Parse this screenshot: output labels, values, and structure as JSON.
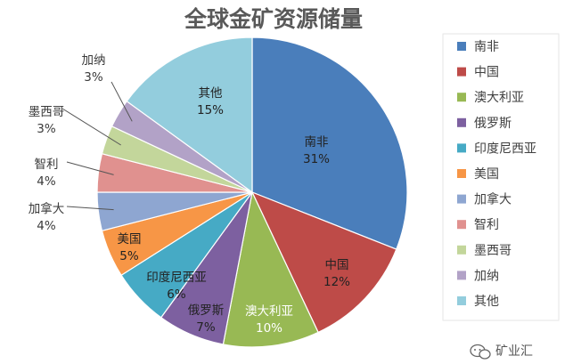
{
  "chart_data": {
    "type": "pie",
    "title": "全球金矿资源储量",
    "unit": "%",
    "slices": [
      {
        "name": "南非",
        "value": 31,
        "label": "31%",
        "color": "#4a7ebb"
      },
      {
        "name": "中国",
        "value": 12,
        "label": "12%",
        "color": "#be4b48"
      },
      {
        "name": "澳大利亚",
        "value": 10,
        "label": "10%",
        "color": "#98b954"
      },
      {
        "name": "俄罗斯",
        "value": 7,
        "label": "7%",
        "color": "#7d60a0"
      },
      {
        "name": "印度尼西亚",
        "value": 6,
        "label": "6%",
        "color": "#46aac5"
      },
      {
        "name": "美国",
        "value": 5,
        "label": "5%",
        "color": "#f79646"
      },
      {
        "name": "加拿大",
        "value": 4,
        "label": "4%",
        "color": "#8ea6d1"
      },
      {
        "name": "智利",
        "value": 4,
        "label": "4%",
        "color": "#e0918f"
      },
      {
        "name": "墨西哥",
        "value": 3,
        "label": "3%",
        "color": "#c3d69b"
      },
      {
        "name": "加纳",
        "value": 3,
        "label": "3%",
        "color": "#b2a2c7"
      },
      {
        "name": "其他",
        "value": 15,
        "label": "15%",
        "color": "#93cddd"
      }
    ],
    "legend_position": "right"
  },
  "watermark": {
    "text": "矿业汇",
    "icon": "wechat-icon"
  }
}
